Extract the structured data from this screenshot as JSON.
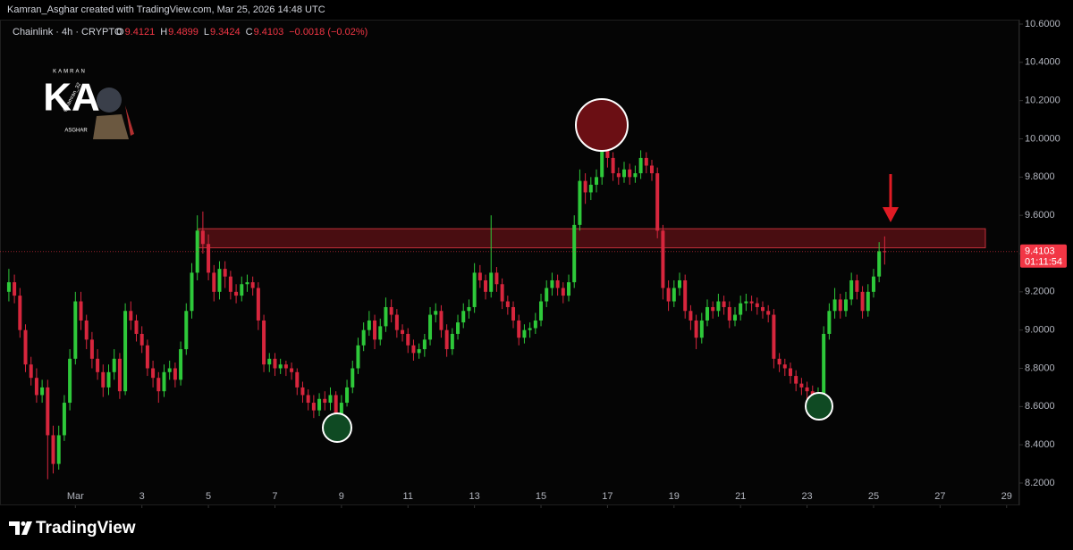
{
  "header": "Kamran_Asghar created with TradingView.com, Mar 25, 2026 14:48 UTC",
  "logo": {
    "top": "KAMRAN",
    "letters": "KA",
    "bottom": "ASGHAR",
    "handle": "@kamran_32"
  },
  "footer": "TradingView",
  "chart_data": {
    "type": "candlestick",
    "title": "Chainlink · 4h · CRYPTO",
    "ohlc_letters": [
      "O",
      "H",
      "L",
      "C"
    ],
    "change": "−0.0018 (−0.02%)",
    "countdown": "01:11:54",
    "up_color": "#2ec93a",
    "down_color": "#d7263d",
    "xlim": [
      -1.6,
      182.3
    ],
    "xticks": [
      {
        "value": 12,
        "label": "Mar"
      },
      {
        "value": 24,
        "label": "3"
      },
      {
        "value": 36,
        "label": "5"
      },
      {
        "value": 48,
        "label": "7"
      },
      {
        "value": 60,
        "label": "9"
      },
      {
        "value": 72,
        "label": "11"
      },
      {
        "value": 84,
        "label": "13"
      },
      {
        "value": 96,
        "label": "15"
      },
      {
        "value": 108,
        "label": "17"
      },
      {
        "value": 120,
        "label": "19"
      },
      {
        "value": 132,
        "label": "21"
      },
      {
        "value": 144,
        "label": "23"
      },
      {
        "value": 156,
        "label": "25"
      },
      {
        "value": 168,
        "label": "27"
      },
      {
        "value": 180,
        "label": "29"
      }
    ],
    "ylim": [
      8.2,
      10.6
    ],
    "yticks": [
      {
        "value": 8.2,
        "label": "8.2000"
      },
      {
        "value": 8.4,
        "label": "8.4000"
      },
      {
        "value": 8.6,
        "label": "8.6000"
      },
      {
        "value": 8.8,
        "label": "8.8000"
      },
      {
        "value": 9.0,
        "label": "9.0000"
      },
      {
        "value": 9.2,
        "label": "9.2000"
      },
      {
        "value": 9.4,
        "label": "9.4000"
      },
      {
        "value": 9.6,
        "label": "9.6000"
      },
      {
        "value": 9.8,
        "label": "9.8000"
      },
      {
        "value": 10.0,
        "label": "10.0000"
      },
      {
        "value": 10.2,
        "label": "10.2000"
      },
      {
        "value": 10.4,
        "label": "10.4000"
      },
      {
        "value": 10.6,
        "label": "10.6000"
      }
    ],
    "zone": {
      "low": 9.43,
      "high": 9.53
    },
    "open": [
      9.2,
      9.25,
      9.18,
      9.0,
      8.82,
      8.75,
      8.66,
      8.7,
      8.45,
      8.3,
      8.45,
      8.62,
      8.85,
      9.15,
      9.05,
      8.95,
      8.85,
      8.78,
      8.7,
      8.78,
      8.85,
      8.68,
      9.1,
      9.05,
      8.98,
      8.92,
      8.8,
      8.75,
      8.68,
      8.78,
      8.8,
      8.74,
      8.9,
      9.1,
      9.3,
      9.52,
      9.45,
      9.3,
      9.2,
      9.32,
      9.28,
      9.2,
      9.18,
      9.24,
      9.25,
      9.22,
      9.05,
      8.82,
      8.85,
      8.8,
      8.82,
      8.8,
      8.78,
      8.7,
      8.66,
      8.62,
      8.58,
      8.64,
      8.62,
      8.66,
      8.55,
      8.62,
      8.7,
      8.8,
      8.92,
      9.0,
      9.05,
      8.95,
      9.02,
      9.12,
      9.08,
      9.0,
      8.98,
      8.92,
      8.88,
      8.9,
      8.95,
      9.08,
      9.1,
      9.0,
      8.9,
      8.98,
      9.04,
      9.1,
      9.12,
      9.3,
      9.26,
      9.2,
      9.3,
      9.24,
      9.15,
      9.12,
      9.05,
      8.96,
      9.0,
      9.01,
      9.05,
      9.15,
      9.22,
      9.26,
      9.22,
      9.18,
      9.25,
      9.55,
      9.78,
      9.72,
      9.76,
      9.8,
      9.96,
      9.9,
      9.82,
      9.8,
      9.84,
      9.8,
      9.82,
      9.9,
      9.86,
      9.82,
      9.52,
      9.22,
      9.15,
      9.22,
      9.26,
      9.1,
      9.05,
      8.96,
      9.05,
      9.12,
      9.1,
      9.15,
      9.12,
      9.05,
      9.08,
      9.14,
      9.15,
      9.14,
      9.12,
      9.1,
      9.08,
      8.85,
      8.82,
      8.8,
      8.76,
      8.72,
      8.7,
      8.68,
      8.64,
      8.66,
      8.98,
      9.1,
      9.16,
      9.1,
      9.16,
      9.26,
      9.2,
      9.1,
      9.2,
      9.28,
      9.4121
    ],
    "high": [
      9.32,
      9.29,
      9.22,
      9.03,
      8.86,
      8.8,
      8.74,
      8.74,
      8.5,
      8.5,
      8.66,
      8.9,
      9.2,
      9.2,
      9.08,
      8.99,
      8.9,
      8.82,
      8.82,
      8.9,
      8.88,
      9.14,
      9.15,
      9.08,
      9.02,
      8.95,
      8.84,
      8.78,
      8.82,
      8.84,
      8.83,
      8.94,
      9.14,
      9.35,
      9.6,
      9.62,
      9.5,
      9.34,
      9.36,
      9.36,
      9.31,
      9.24,
      9.28,
      9.29,
      9.28,
      9.25,
      9.08,
      8.88,
      8.88,
      8.85,
      8.84,
      8.83,
      8.8,
      8.73,
      8.69,
      8.66,
      8.67,
      8.68,
      8.7,
      8.68,
      8.66,
      8.74,
      8.84,
      8.96,
      9.04,
      9.1,
      9.08,
      9.06,
      9.17,
      9.16,
      9.11,
      9.03,
      9.01,
      8.95,
      8.93,
      8.98,
      9.12,
      9.14,
      9.13,
      9.03,
      9.01,
      9.08,
      9.14,
      9.16,
      9.35,
      9.34,
      9.29,
      9.6,
      9.33,
      9.27,
      9.18,
      9.15,
      9.08,
      9.03,
      9.04,
      9.09,
      9.19,
      9.26,
      9.3,
      9.29,
      9.25,
      9.29,
      9.6,
      9.84,
      9.82,
      9.8,
      9.84,
      10.1,
      10.02,
      9.93,
      9.85,
      9.88,
      9.87,
      9.86,
      9.94,
      9.93,
      9.89,
      9.85,
      9.55,
      9.26,
      9.26,
      9.3,
      9.29,
      9.13,
      9.08,
      9.09,
      9.16,
      9.15,
      9.19,
      9.18,
      9.15,
      9.12,
      9.18,
      9.19,
      9.18,
      9.17,
      9.15,
      9.13,
      9.11,
      8.88,
      8.85,
      8.83,
      8.79,
      8.75,
      8.73,
      8.71,
      8.7,
      9.02,
      9.14,
      9.22,
      9.19,
      9.2,
      9.3,
      9.29,
      9.23,
      9.24,
      9.32,
      9.46,
      9.4899
    ],
    "low": [
      9.15,
      9.14,
      8.96,
      8.78,
      8.71,
      8.62,
      8.62,
      8.22,
      8.25,
      8.27,
      8.42,
      8.58,
      8.82,
      9.0,
      8.9,
      8.8,
      8.74,
      8.65,
      8.66,
      8.74,
      8.64,
      8.66,
      9.0,
      8.94,
      8.88,
      8.76,
      8.7,
      8.62,
      8.65,
      8.74,
      8.7,
      8.71,
      8.87,
      9.06,
      9.26,
      9.4,
      9.26,
      9.15,
      9.16,
      9.22,
      9.16,
      9.14,
      9.15,
      9.2,
      9.18,
      9.0,
      8.78,
      8.78,
      8.76,
      8.77,
      8.76,
      8.74,
      8.66,
      8.62,
      8.58,
      8.54,
      8.55,
      8.58,
      8.58,
      8.5,
      8.52,
      8.6,
      8.67,
      8.77,
      8.89,
      8.97,
      8.9,
      8.92,
      8.99,
      9.04,
      8.96,
      8.94,
      8.88,
      8.84,
      8.85,
      8.86,
      8.92,
      9.04,
      8.96,
      8.86,
      8.87,
      8.95,
      9.01,
      9.06,
      9.09,
      9.22,
      9.16,
      9.17,
      9.2,
      9.11,
      9.08,
      9.01,
      8.92,
      8.93,
      8.96,
      8.98,
      9.02,
      9.12,
      9.18,
      9.18,
      9.14,
      9.15,
      9.22,
      9.52,
      9.66,
      9.68,
      9.72,
      9.76,
      9.85,
      9.78,
      9.76,
      9.77,
      9.76,
      9.77,
      9.79,
      9.82,
      9.78,
      9.48,
      9.16,
      9.1,
      9.12,
      9.18,
      9.06,
      9.0,
      8.9,
      8.93,
      9.02,
      9.06,
      9.07,
      9.08,
      9.01,
      9.02,
      9.05,
      9.1,
      9.1,
      9.08,
      9.06,
      9.04,
      8.8,
      8.78,
      8.76,
      8.72,
      8.68,
      8.66,
      8.64,
      8.6,
      8.58,
      8.63,
      8.95,
      9.06,
      9.06,
      9.07,
      9.13,
      9.16,
      9.06,
      9.07,
      9.17,
      9.25,
      9.3424
    ],
    "close": [
      9.25,
      9.18,
      9.0,
      8.82,
      8.75,
      8.66,
      8.7,
      8.45,
      8.3,
      8.45,
      8.62,
      8.85,
      9.15,
      9.05,
      8.95,
      8.85,
      8.78,
      8.7,
      8.78,
      8.85,
      8.68,
      9.1,
      9.05,
      8.98,
      8.92,
      8.8,
      8.75,
      8.68,
      8.78,
      8.8,
      8.74,
      8.9,
      9.1,
      9.3,
      9.52,
      9.45,
      9.3,
      9.2,
      9.32,
      9.28,
      9.2,
      9.18,
      9.24,
      9.25,
      9.22,
      9.05,
      8.82,
      8.85,
      8.8,
      8.82,
      8.8,
      8.78,
      8.7,
      8.66,
      8.62,
      8.58,
      8.64,
      8.62,
      8.66,
      8.55,
      8.62,
      8.7,
      8.8,
      8.92,
      9.0,
      9.05,
      8.95,
      9.02,
      9.12,
      9.08,
      9.0,
      8.98,
      8.92,
      8.88,
      8.9,
      8.95,
      9.08,
      9.1,
      9.0,
      8.9,
      8.98,
      9.04,
      9.1,
      9.12,
      9.3,
      9.26,
      9.2,
      9.3,
      9.24,
      9.15,
      9.12,
      9.05,
      8.96,
      9.0,
      9.01,
      9.05,
      9.15,
      9.22,
      9.26,
      9.22,
      9.18,
      9.25,
      9.55,
      9.78,
      9.72,
      9.76,
      9.8,
      9.96,
      9.9,
      9.82,
      9.8,
      9.84,
      9.8,
      9.82,
      9.9,
      9.86,
      9.82,
      9.52,
      9.22,
      9.15,
      9.22,
      9.26,
      9.1,
      9.05,
      8.96,
      9.05,
      9.12,
      9.1,
      9.15,
      9.12,
      9.05,
      9.08,
      9.14,
      9.15,
      9.14,
      9.12,
      9.1,
      9.08,
      8.85,
      8.82,
      8.8,
      8.76,
      8.72,
      8.7,
      8.68,
      8.64,
      8.66,
      8.98,
      9.1,
      9.16,
      9.1,
      9.16,
      9.26,
      9.2,
      9.1,
      9.2,
      9.28,
      9.4121,
      9.4103
    ]
  }
}
